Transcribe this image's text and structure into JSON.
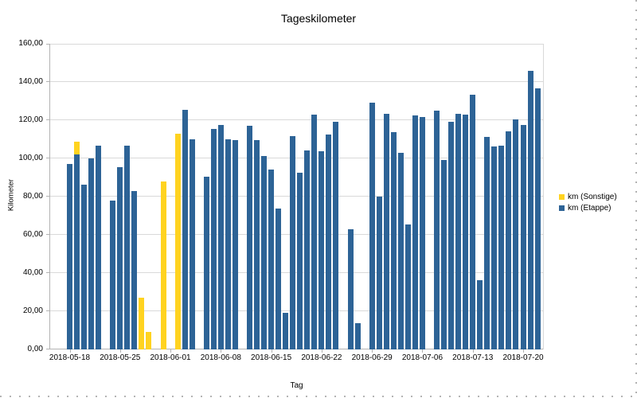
{
  "title": "Tageskilometer",
  "axes": {
    "y_title": "Kilometer",
    "x_title": "Tag",
    "y_tick_labels": [
      "160,00",
      "140,00",
      "120,00",
      "100,00",
      "80,00",
      "60,00",
      "40,00",
      "20,00",
      "0,00"
    ],
    "x_tick_labels": [
      "2018-05-18",
      "2018-05-25",
      "2018-06-01",
      "2018-06-08",
      "2018-06-15",
      "2018-06-22",
      "2018-06-29",
      "2018-07-06",
      "2018-07-13",
      "2018-07-20"
    ]
  },
  "legend": [
    {
      "label": "km (Sonstige)",
      "color": "#FFD320"
    },
    {
      "label": "km (Etappe)",
      "color": "#2D6396"
    }
  ],
  "colors": {
    "bar_etappe": "#2D6396",
    "bar_sonstige": "#FFD320",
    "gridline": "#d9d9d9",
    "axis": "#b3b3b3",
    "text": "#000000",
    "background": "#ffffff"
  },
  "chart_data": {
    "type": "bar",
    "stacked": true,
    "title": "Tageskilometer",
    "xlabel": "Tag",
    "ylabel": "Kilometer",
    "ylim": [
      0,
      160
    ],
    "y_step": 20,
    "x_tick_interval_days": 7,
    "legend_position": "right",
    "grid": true,
    "stack_order": [
      "km (Etappe)",
      "km (Sonstige)"
    ],
    "categories": [
      "2018-05-18",
      "2018-05-19",
      "2018-05-20",
      "2018-05-21",
      "2018-05-22",
      "2018-05-23",
      "2018-05-24",
      "2018-05-25",
      "2018-05-26",
      "2018-05-27",
      "2018-05-28",
      "2018-05-29",
      "2018-05-30",
      "2018-05-31",
      "2018-06-01",
      "2018-06-02",
      "2018-06-03",
      "2018-06-04",
      "2018-06-05",
      "2018-06-06",
      "2018-06-07",
      "2018-06-08",
      "2018-06-09",
      "2018-06-10",
      "2018-06-11",
      "2018-06-12",
      "2018-06-13",
      "2018-06-14",
      "2018-06-15",
      "2018-06-16",
      "2018-06-17",
      "2018-06-18",
      "2018-06-19",
      "2018-06-20",
      "2018-06-21",
      "2018-06-22",
      "2018-06-23",
      "2018-06-24",
      "2018-06-25",
      "2018-06-26",
      "2018-06-27",
      "2018-06-28",
      "2018-06-29",
      "2018-06-30",
      "2018-07-01",
      "2018-07-02",
      "2018-07-03",
      "2018-07-04",
      "2018-07-05",
      "2018-07-06",
      "2018-07-07",
      "2018-07-08",
      "2018-07-09",
      "2018-07-10",
      "2018-07-11",
      "2018-07-12",
      "2018-07-13",
      "2018-07-14",
      "2018-07-15",
      "2018-07-16",
      "2018-07-17",
      "2018-07-18",
      "2018-07-19",
      "2018-07-20",
      "2018-07-21",
      "2018-07-22"
    ],
    "series": [
      {
        "name": "km (Etappe)",
        "color": "#2D6396",
        "values": [
          97,
          102,
          86,
          100,
          106.5,
          null,
          78,
          95.5,
          106.5,
          83,
          0,
          0,
          null,
          0,
          null,
          0,
          125.5,
          110,
          null,
          90.5,
          115.5,
          117.5,
          110,
          109.5,
          null,
          117,
          109.5,
          101,
          94,
          73.5,
          19,
          111.5,
          92.5,
          104,
          123,
          103.5,
          112.5,
          119,
          null,
          63,
          13.5,
          null,
          129,
          80,
          123.5,
          113.5,
          103,
          65.5,
          122.5,
          121.5,
          null,
          125,
          99,
          119,
          123.5,
          123,
          133.5,
          36,
          111,
          106,
          106.5,
          114,
          120.5,
          117.5,
          146,
          136.5
        ]
      },
      {
        "name": "km (Sonstige)",
        "color": "#FFD320",
        "values": [
          0,
          6.5,
          0,
          0,
          0,
          null,
          0,
          0,
          0,
          0,
          27,
          9,
          null,
          88,
          null,
          113,
          0,
          0,
          null,
          0,
          0,
          0,
          0,
          0,
          null,
          0,
          0,
          0,
          0,
          0,
          0,
          0,
          0,
          0,
          0,
          0,
          0,
          0,
          null,
          0,
          0,
          null,
          0,
          0,
          0,
          0,
          0,
          0,
          0,
          0,
          null,
          0,
          0,
          0,
          0,
          0,
          0,
          0,
          0,
          0,
          0,
          0,
          0,
          0,
          0,
          0
        ]
      }
    ]
  }
}
